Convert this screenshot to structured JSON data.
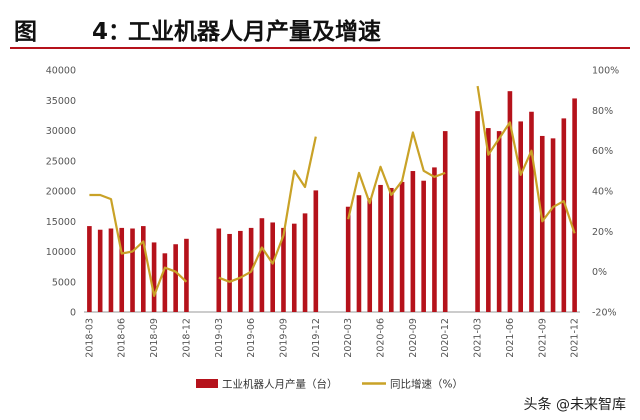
{
  "figure": {
    "label": "图",
    "number": "4：",
    "title": "工业机器人月产量及增速"
  },
  "watermark": "头条 @未来智库",
  "colors": {
    "bar": "#b5121b",
    "line": "#c9a227",
    "rule": "#b5121b"
  },
  "chart_data": {
    "type": "bar",
    "title": "工业机器人月产量及增速",
    "x_tick_labels": [
      "2018-03",
      "2018-06",
      "2018-09",
      "2018-12",
      "2019-03",
      "2019-06",
      "2019-09",
      "2019-12",
      "2020-03",
      "2020-06",
      "2020-09",
      "2020-12",
      "2021-03",
      "2021-06",
      "2021-09",
      "2021-12"
    ],
    "y_left": {
      "ticks": [
        "0",
        "5000",
        "10000",
        "15000",
        "20000",
        "25000",
        "30000",
        "35000",
        "40000"
      ],
      "range": [
        0,
        40000
      ]
    },
    "y_right": {
      "ticks": [
        "-20%",
        "0%",
        "20%",
        "40%",
        "60%",
        "80%",
        "100%"
      ],
      "range": [
        -20,
        100
      ]
    },
    "legend": [
      "工业机器人月产量（台）",
      "同比增速（%）"
    ],
    "series": [
      {
        "name": "工业机器人月产量（台）",
        "type": "bar",
        "axis": "left",
        "segments": [
          {
            "start": "2018-03",
            "values": [
              14200,
              13600,
              13800,
              13900,
              13800,
              14200,
              11500,
              9700,
              11200,
              12100
            ]
          },
          {
            "start": "2019-03",
            "values": [
              13800,
              12900,
              13400,
              13900,
              15500,
              14800,
              13900,
              14600,
              16300,
              20100
            ]
          },
          {
            "start": "2020-03",
            "values": [
              17400,
              19300,
              18800,
              21000,
              20500,
              21500,
              23300,
              21700,
              23900,
              29900
            ]
          },
          {
            "start": "2021-03",
            "values": [
              33200,
              30400,
              29900,
              36500,
              31500,
              33100,
              29100,
              28700,
              32000,
              35300
            ]
          }
        ]
      },
      {
        "name": "同比增速（%）",
        "type": "line",
        "axis": "right",
        "segments": [
          {
            "start": "2018-03",
            "values": [
              38,
              38,
              36,
              9,
              10,
              15,
              -12,
              2,
              0,
              -5
            ]
          },
          {
            "start": "2019-03",
            "values": [
              -3,
              -5,
              -3,
              0,
              12,
              4,
              18,
              50,
              42,
              67
            ]
          },
          {
            "start": "2020-03",
            "values": [
              26,
              49,
              34,
              52,
              38,
              45,
              69,
              50,
              47,
              49
            ]
          },
          {
            "start": "2021-03",
            "values": [
              92,
              58,
              66,
              74,
              48,
              60,
              25,
              32,
              35,
              19
            ]
          }
        ]
      }
    ]
  }
}
